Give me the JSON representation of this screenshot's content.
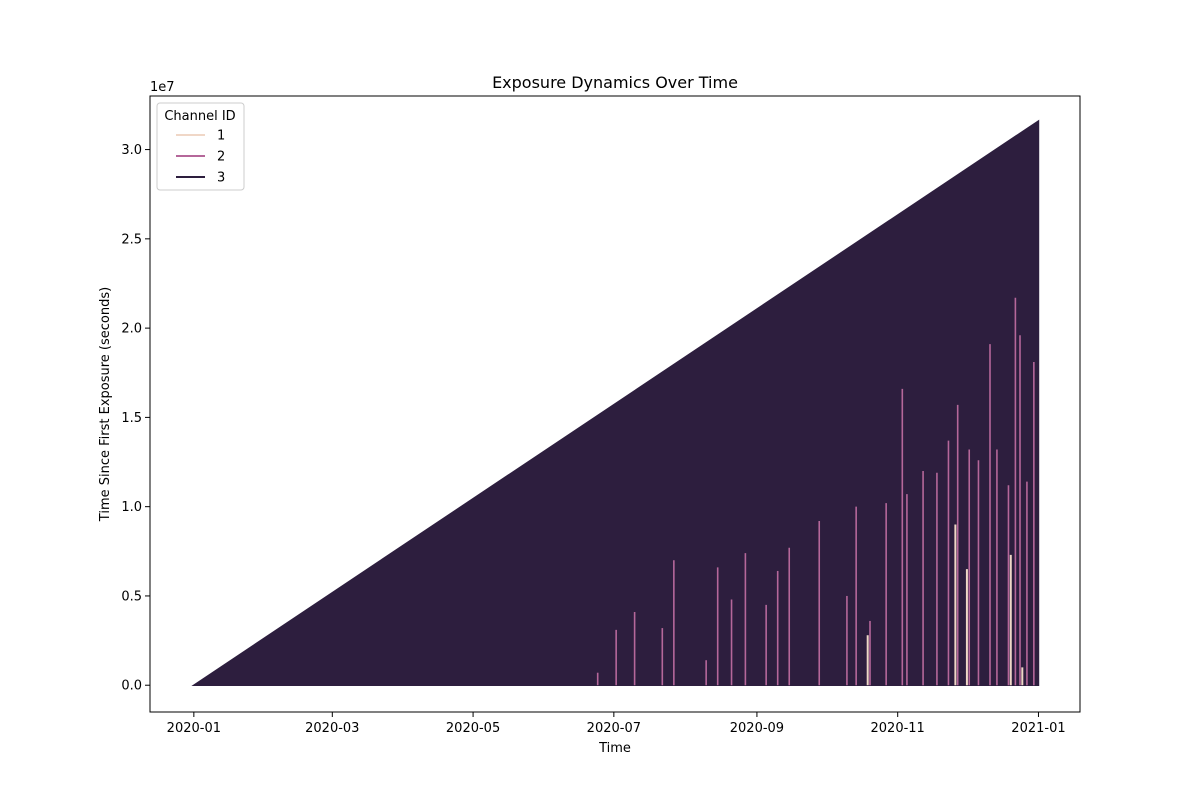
{
  "chart_data": {
    "type": "line",
    "title": "Exposure Dynamics Over Time",
    "xlabel": "Time",
    "ylabel": "Time Since First Exposure (seconds)",
    "y_offset_label": "1e7",
    "xlim": [
      "2019-12-13",
      "2021-01-19"
    ],
    "ylim": [
      -1500000,
      33000000
    ],
    "x_ticks": [
      "2020-01",
      "2020-03",
      "2020-05",
      "2020-07",
      "2020-09",
      "2020-11",
      "2021-01"
    ],
    "y_ticks": [
      "0.0",
      "0.5",
      "1.0",
      "1.5",
      "2.0",
      "2.5",
      "3.0"
    ],
    "legend": {
      "title": "Channel ID",
      "placement": "top-left",
      "entries": [
        "1",
        "2",
        "3"
      ]
    },
    "series": [
      {
        "name": "3",
        "color": "#2d1e3e",
        "envelope": [
          {
            "x": "2020-01-01",
            "y": 0
          },
          {
            "x": "2021-01-01",
            "y": 31600000
          }
        ]
      },
      {
        "name": "2",
        "color": "#b5679a",
        "spikes": [
          {
            "x": "2020-06-24",
            "y": 700000
          },
          {
            "x": "2020-07-02",
            "y": 3100000
          },
          {
            "x": "2020-07-10",
            "y": 4100000
          },
          {
            "x": "2020-07-22",
            "y": 3200000
          },
          {
            "x": "2020-07-27",
            "y": 7000000
          },
          {
            "x": "2020-08-10",
            "y": 1400000
          },
          {
            "x": "2020-08-15",
            "y": 6600000
          },
          {
            "x": "2020-08-21",
            "y": 4800000
          },
          {
            "x": "2020-08-27",
            "y": 7400000
          },
          {
            "x": "2020-09-05",
            "y": 4500000
          },
          {
            "x": "2020-09-10",
            "y": 6400000
          },
          {
            "x": "2020-09-15",
            "y": 7700000
          },
          {
            "x": "2020-09-28",
            "y": 9200000
          },
          {
            "x": "2020-10-10",
            "y": 5000000
          },
          {
            "x": "2020-10-14",
            "y": 10000000
          },
          {
            "x": "2020-10-20",
            "y": 3600000
          },
          {
            "x": "2020-10-27",
            "y": 10200000
          },
          {
            "x": "2020-11-03",
            "y": 16600000
          },
          {
            "x": "2020-11-05",
            "y": 10700000
          },
          {
            "x": "2020-11-12",
            "y": 12000000
          },
          {
            "x": "2020-11-18",
            "y": 11900000
          },
          {
            "x": "2020-11-23",
            "y": 13700000
          },
          {
            "x": "2020-11-27",
            "y": 15700000
          },
          {
            "x": "2020-12-02",
            "y": 13200000
          },
          {
            "x": "2020-12-06",
            "y": 12600000
          },
          {
            "x": "2020-12-11",
            "y": 19100000
          },
          {
            "x": "2020-12-14",
            "y": 13200000
          },
          {
            "x": "2020-12-19",
            "y": 11200000
          },
          {
            "x": "2020-12-22",
            "y": 21700000
          },
          {
            "x": "2020-12-24",
            "y": 19600000
          },
          {
            "x": "2020-12-27",
            "y": 11400000
          },
          {
            "x": "2020-12-30",
            "y": 18100000
          }
        ]
      },
      {
        "name": "1",
        "color": "#f0d7c7",
        "spikes": [
          {
            "x": "2020-10-19",
            "y": 2800000
          },
          {
            "x": "2020-11-26",
            "y": 9000000
          },
          {
            "x": "2020-12-01",
            "y": 6500000
          },
          {
            "x": "2020-12-20",
            "y": 7300000
          },
          {
            "x": "2020-12-25",
            "y": 1000000
          }
        ]
      }
    ]
  }
}
